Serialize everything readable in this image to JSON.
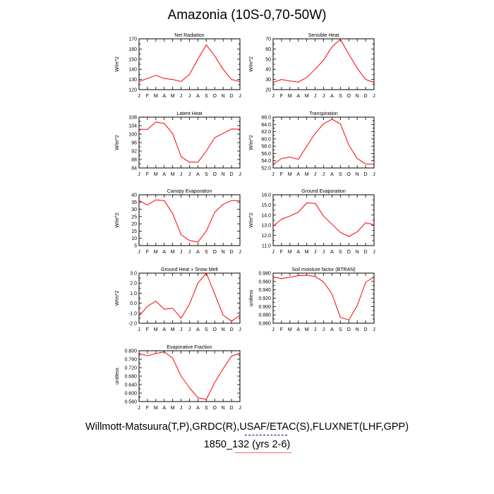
{
  "title": "Amazonia (10S-0,70-50W)",
  "footer": {
    "sources": "Willmott-Matsuura(T,P),GRDC(R),USAF/ETAC(S),FLUXNET(LHF,GPP)",
    "case": "1850_132 (yrs 2-6)"
  },
  "colors": {
    "series": "#ff0000",
    "legend_dash": "#000080",
    "axis": "#000000"
  },
  "chart_data": [
    {
      "type": "line",
      "title": "Net Radiation",
      "ylabel": "W/m^2",
      "categories": [
        "J",
        "F",
        "M",
        "A",
        "M",
        "J",
        "J",
        "A",
        "S",
        "O",
        "N",
        "D",
        "J"
      ],
      "ylim": [
        120,
        170
      ],
      "yticks": [
        120,
        125,
        130,
        135,
        140,
        145,
        150,
        155,
        160,
        165,
        170
      ],
      "yticklabels": [
        "120",
        "130",
        "140",
        "150",
        "160",
        "170"
      ],
      "values": [
        128,
        131,
        134,
        131,
        130,
        128,
        135,
        150,
        164,
        153,
        140,
        130,
        128
      ]
    },
    {
      "type": "line",
      "title": "Sensible Heat",
      "ylabel": "W/m^2",
      "categories": [
        "J",
        "F",
        "M",
        "A",
        "M",
        "J",
        "J",
        "A",
        "S",
        "O",
        "N",
        "D",
        "J"
      ],
      "ylim": [
        20,
        70
      ],
      "yticks": [
        20,
        25,
        30,
        35,
        40,
        45,
        50,
        55,
        60,
        65,
        70
      ],
      "yticklabels": [
        "20",
        "30",
        "40",
        "50",
        "60",
        "70"
      ],
      "values": [
        27,
        30,
        28.5,
        27.5,
        32,
        40,
        49,
        62,
        69.5,
        55,
        41,
        30,
        27
      ]
    },
    {
      "type": "line",
      "title": "Latent Heat",
      "ylabel": "W/m^2",
      "categories": [
        "J",
        "F",
        "M",
        "A",
        "M",
        "J",
        "J",
        "A",
        "S",
        "O",
        "N",
        "D",
        "J"
      ],
      "ylim": [
        84,
        108
      ],
      "yticks": [
        84,
        86,
        88,
        90,
        92,
        94,
        96,
        98,
        100,
        102,
        104,
        106,
        108
      ],
      "yticklabels": [
        "84",
        "88",
        "92",
        "96",
        "100",
        "104",
        "108"
      ],
      "values": [
        102.3,
        102.2,
        105.7,
        105,
        100.2,
        89.4,
        86.7,
        86.7,
        92,
        98.3,
        100.3,
        102.4,
        102.3
      ]
    },
    {
      "type": "line",
      "title": "Transpiration",
      "ylabel": "W/m^2",
      "categories": [
        "J",
        "F",
        "M",
        "A",
        "M",
        "J",
        "J",
        "A",
        "S",
        "O",
        "N",
        "D",
        "J"
      ],
      "ylim": [
        52,
        66
      ],
      "yticks": [
        52,
        53,
        54,
        55,
        56,
        57,
        58,
        59,
        60,
        61,
        62,
        63,
        64,
        65,
        66
      ],
      "yticklabels": [
        "52.0",
        "54.0",
        "56.0",
        "58.0",
        "60.0",
        "62.0",
        "64.0",
        "66.0"
      ],
      "values": [
        53,
        54.6,
        55,
        54.4,
        58,
        61.5,
        64.2,
        65.4,
        64.2,
        58.3,
        54.6,
        53.1,
        53
      ]
    },
    {
      "type": "line",
      "title": "Canopy Evaporation",
      "ylabel": "W/m^2",
      "categories": [
        "J",
        "F",
        "M",
        "A",
        "M",
        "J",
        "J",
        "A",
        "S",
        "O",
        "N",
        "D",
        "J"
      ],
      "ylim": [
        5,
        40
      ],
      "yticks": [
        5,
        10,
        15,
        20,
        25,
        30,
        35,
        40
      ],
      "yticklabels": [
        "5",
        "10",
        "15",
        "20",
        "25",
        "30",
        "35",
        "40"
      ],
      "values": [
        36,
        33,
        36.5,
        36,
        27,
        12.5,
        8.5,
        7.5,
        15,
        28,
        33.5,
        36,
        36
      ]
    },
    {
      "type": "line",
      "title": "Ground Evaporation",
      "ylabel": "W/m^2",
      "categories": [
        "J",
        "F",
        "M",
        "A",
        "M",
        "J",
        "J",
        "A",
        "S",
        "O",
        "N",
        "D",
        "J"
      ],
      "ylim": [
        11,
        16
      ],
      "yticks": [
        11,
        11.5,
        12,
        12.5,
        13,
        13.5,
        14,
        14.5,
        15,
        15.5,
        16
      ],
      "yticklabels": [
        "11.0",
        "12.0",
        "13.0",
        "14.0",
        "15.0",
        "16.0"
      ],
      "values": [
        12.9,
        13.6,
        13.9,
        14.3,
        15.2,
        15.15,
        13.9,
        13.1,
        12.3,
        11.9,
        12.35,
        13.25,
        13.05
      ]
    },
    {
      "type": "line",
      "title": "Ground Heat + Snow Melt",
      "ylabel": "W/m^2",
      "categories": [
        "J",
        "F",
        "M",
        "A",
        "M",
        "J",
        "J",
        "A",
        "S",
        "O",
        "N",
        "D",
        "J"
      ],
      "ylim": [
        -2,
        3
      ],
      "yticks": [
        -2,
        -1.5,
        -1,
        -0.5,
        0,
        0.5,
        1,
        1.5,
        2,
        2.5,
        3
      ],
      "yticklabels": [
        "-2.0",
        "-1.0",
        "0.0",
        "1.0",
        "2.0",
        "3.0"
      ],
      "values": [
        -1.3,
        -0.3,
        0.2,
        -0.6,
        -0.5,
        -1.5,
        -0.1,
        2.0,
        3.0,
        0.9,
        -1.2,
        -1.8,
        -1.2
      ]
    },
    {
      "type": "line",
      "title": "Soil moisture factor (BTRAN)",
      "ylabel": "unitless",
      "categories": [
        "J",
        "F",
        "M",
        "A",
        "M",
        "J",
        "J",
        "A",
        "S",
        "O",
        "N",
        "D",
        "J"
      ],
      "ylim": [
        0.86,
        0.98
      ],
      "yticks": [
        0.86,
        0.87,
        0.88,
        0.89,
        0.9,
        0.91,
        0.92,
        0.93,
        0.94,
        0.95,
        0.96,
        0.97,
        0.98
      ],
      "yticklabels": [
        "0.860",
        "0.880",
        "0.900",
        "0.920",
        "0.940",
        "0.960",
        "0.980"
      ],
      "values": [
        0.971,
        0.967,
        0.97,
        0.974,
        0.975,
        0.972,
        0.959,
        0.93,
        0.874,
        0.868,
        0.902,
        0.958,
        0.971
      ]
    },
    {
      "type": "line",
      "title": "Evaporative Fraction",
      "ylabel": "unitless",
      "categories": [
        "J",
        "F",
        "M",
        "A",
        "M",
        "J",
        "J",
        "A",
        "S",
        "O",
        "N",
        "D",
        "J"
      ],
      "ylim": [
        0.56,
        0.8
      ],
      "yticks": [
        0.56,
        0.58,
        0.6,
        0.62,
        0.64,
        0.66,
        0.68,
        0.7,
        0.72,
        0.74,
        0.76,
        0.78,
        0.8
      ],
      "yticklabels": [
        "0.560",
        "0.600",
        "0.640",
        "0.680",
        "0.720",
        "0.760",
        "0.800"
      ],
      "values": [
        0.788,
        0.776,
        0.787,
        0.795,
        0.765,
        0.68,
        0.625,
        0.578,
        0.57,
        0.65,
        0.715,
        0.775,
        0.788
      ]
    }
  ]
}
